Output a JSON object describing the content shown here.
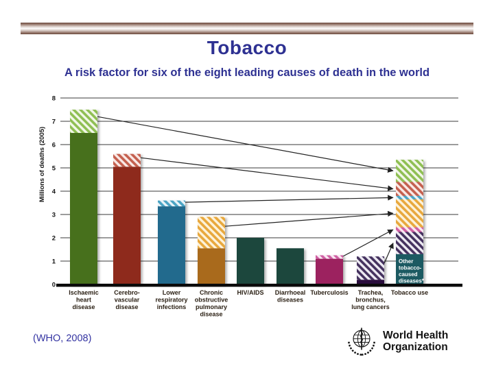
{
  "slide": {
    "title": "Tobacco",
    "subtitle": "A risk factor for six of the eight leading causes of death in the world",
    "citation": "(WHO, 2008)"
  },
  "logo": {
    "line1": "World Health",
    "line2": "Organization"
  },
  "colors": {
    "title_blue": "#2e3192",
    "gridline": "#3a3a3a",
    "axis_black": "#0a0a0a",
    "xlabel_text": "#2b2014",
    "deco_brown": "#6e4f43"
  },
  "chart_data": {
    "type": "bar",
    "title": "",
    "xlabel": "",
    "ylabel": "Millions of deaths (2005)",
    "ylim": [
      0,
      8
    ],
    "yticks": [
      0,
      1,
      2,
      3,
      4,
      5,
      6,
      7,
      8
    ],
    "grid": true,
    "legend": "none",
    "note": "Hatched portions of each cause-of-death bar are tobacco-attributable and map via arrows into the stacked Tobacco use bar.",
    "categories": [
      "Ischaemic heart disease",
      "Cerebro-vascular disease",
      "Lower respiratory infections",
      "Chronic obstructive pulmonary disease",
      "HIV/AIDS",
      "Diarrhoeal diseases",
      "Tuberculosis",
      "Trachea, bronchus, lung cancers",
      "Tobacco use"
    ],
    "bars": [
      {
        "id": "ischaemic-heart-disease",
        "label": [
          "Ischaemic",
          "heart",
          "disease"
        ],
        "solid": 6.5,
        "tobacco": 1.0,
        "total": 7.5,
        "color": "#47701e",
        "stripe": "#8fbf53",
        "hatch_bg": "#f2f7e8"
      },
      {
        "id": "cerebrovascular-disease",
        "label": [
          "Cerebro-",
          "vascular",
          "disease"
        ],
        "solid": 5.05,
        "tobacco": 0.55,
        "total": 5.6,
        "color": "#8e2a1b",
        "stripe": "#c4604f",
        "hatch_bg": "#f9e9e6"
      },
      {
        "id": "lower-respiratory-infections",
        "label": [
          "Lower",
          "respiratory",
          "infections"
        ],
        "solid": 3.35,
        "tobacco": 0.25,
        "total": 3.6,
        "color": "#206a8d",
        "stripe": "#4ba4c4",
        "hatch_bg": "#e9f3f8"
      },
      {
        "id": "chronic-obstructive-pulmonary-disease",
        "label": [
          "Chronic",
          "obstructive",
          "pulmonary",
          "disease"
        ],
        "solid": 1.55,
        "tobacco": 1.35,
        "total": 2.9,
        "color": "#a96a1e",
        "stripe": "#e8a83d",
        "hatch_bg": "#fdf2da"
      },
      {
        "id": "hiv-aids",
        "label": [
          "HIV/AIDS"
        ],
        "solid": 2.0,
        "tobacco": 0,
        "total": 2.0,
        "color": "#1b473c",
        "stripe": "#1b473c",
        "hatch_bg": "#ffffff"
      },
      {
        "id": "diarrhoeal-diseases",
        "label": [
          "Diarrhoeal",
          "diseases"
        ],
        "solid": 1.55,
        "tobacco": 0,
        "total": 1.55,
        "color": "#1b473c",
        "stripe": "#1b473c",
        "hatch_bg": "#ffffff"
      },
      {
        "id": "tuberculosis",
        "label": [
          "Tuberculosis"
        ],
        "solid": 1.1,
        "tobacco": 0.15,
        "total": 1.25,
        "color": "#9c205f",
        "stripe": "#cf5fa3",
        "hatch_bg": "#fae8f2"
      },
      {
        "id": "trachea-bronchus-lung-cancers",
        "label": [
          "Trachea,",
          "bronchus,",
          "lung cancers"
        ],
        "solid": 0.2,
        "tobacco": 1.0,
        "total": 1.2,
        "color": "#2a0f3d",
        "stripe": "#45325f",
        "hatch_bg": "#edeaf2"
      },
      {
        "id": "tobacco-use",
        "label": [
          "Tobacco use"
        ],
        "stacked": true,
        "total": 5.35,
        "segments": [
          {
            "id": "other-tobacco-caused",
            "value": 1.3,
            "hatch": false,
            "color": "#1b5a62",
            "stripe": "#1b5a62",
            "hatch_bg": "#1b5a62",
            "inner_label": [
              "Other",
              "tobacco-",
              "caused",
              "diseases*"
            ]
          },
          {
            "id": "lung-cancers",
            "value": 0.95,
            "hatch": true,
            "stripe": "#45325f",
            "hatch_bg": "#edeaf2"
          },
          {
            "id": "tuberculosis",
            "value": 0.2,
            "hatch": true,
            "stripe": "#cf5fa3",
            "hatch_bg": "#fae8f2"
          },
          {
            "id": "copd",
            "value": 1.2,
            "hatch": true,
            "stripe": "#e8a83d",
            "hatch_bg": "#fdf2da"
          },
          {
            "id": "lri",
            "value": 0.15,
            "hatch": true,
            "stripe": "#4ba4c4",
            "hatch_bg": "#e9f3f8"
          },
          {
            "id": "stroke",
            "value": 0.6,
            "hatch": true,
            "stripe": "#c4604f",
            "hatch_bg": "#f9e9e6"
          },
          {
            "id": "ihd",
            "value": 0.95,
            "hatch": true,
            "stripe": "#8fbf53",
            "hatch_bg": "#f2f7e8"
          }
        ]
      }
    ],
    "arrows": [
      {
        "from_bar": 0,
        "to_segment": "ihd"
      },
      {
        "from_bar": 1,
        "to_segment": "stroke"
      },
      {
        "from_bar": 2,
        "to_segment": "lri"
      },
      {
        "from_bar": 3,
        "to_segment": "copd"
      },
      {
        "from_bar": 6,
        "to_segment": "tuberculosis"
      },
      {
        "from_bar": 7,
        "to_segment": "lung-cancers"
      }
    ]
  }
}
